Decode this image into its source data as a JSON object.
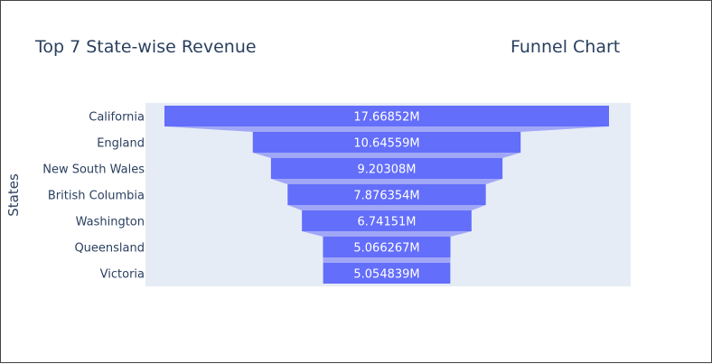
{
  "chart_data": {
    "type": "funnel",
    "title": "Top 7 State-wise Revenue",
    "annotation": "Funnel Chart",
    "ylabel": "States",
    "categories": [
      "California",
      "England",
      "New South Wales",
      "British Columbia",
      "Washington",
      "Queensland",
      "Victoria"
    ],
    "values": [
      17.66852,
      10.64559,
      9.20308,
      7.876354,
      6.74151,
      5.066267,
      5.054839
    ],
    "text_labels": [
      "17.66852M",
      "10.64559M",
      "9.20308M",
      "7.876354M",
      "6.74151M",
      "5.066267M",
      "5.054839M"
    ],
    "colors": {
      "bar": "#636efa",
      "connector": "#a1a7f7",
      "plot_bg": "#e5ecf6",
      "text": "#2a3f5f"
    },
    "grid": false,
    "legend": "none"
  }
}
